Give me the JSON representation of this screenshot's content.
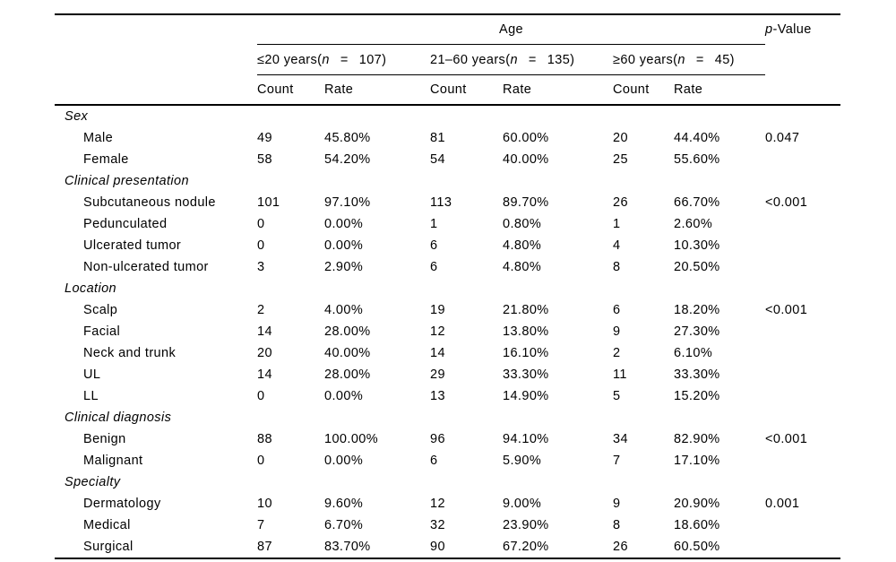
{
  "page": {
    "background": "#ffffff",
    "text_color": "#000000",
    "rule_color": "#000000"
  },
  "table": {
    "age_header": "Age",
    "p_value_header": {
      "italic": "p",
      "rest": "-Value"
    },
    "groups": [
      {
        "pre": "≤20 years(",
        "var": "n",
        "eq": "=",
        "count": "107)"
      },
      {
        "pre": "21–60 years(",
        "var": "n",
        "eq": "=",
        "count": "135)"
      },
      {
        "pre": "≥60 years(",
        "var": "n",
        "eq": "=",
        "count": "45)"
      }
    ],
    "subheaders": {
      "count": "Count",
      "rate": "Rate"
    },
    "rows": [
      {
        "type": "section",
        "label": "Sex",
        "values": [
          "",
          "",
          "",
          "",
          "",
          ""
        ],
        "p": ""
      },
      {
        "type": "item",
        "label": "Male",
        "values": [
          "49",
          "45.80%",
          "81",
          "60.00%",
          "20",
          "44.40%"
        ],
        "p": "0.047"
      },
      {
        "type": "item",
        "label": "Female",
        "values": [
          "58",
          "54.20%",
          "54",
          "40.00%",
          "25",
          "55.60%"
        ],
        "p": ""
      },
      {
        "type": "section",
        "label": "Clinical presentation",
        "values": [
          "",
          "",
          "",
          "",
          "",
          ""
        ],
        "p": ""
      },
      {
        "type": "item",
        "label": "Subcutaneous nodule",
        "values": [
          "101",
          "97.10%",
          "113",
          "89.70%",
          "26",
          "66.70%"
        ],
        "p": "<0.001"
      },
      {
        "type": "item",
        "label": "Pedunculated",
        "values": [
          "0",
          "0.00%",
          "1",
          "0.80%",
          "1",
          "2.60%"
        ],
        "p": ""
      },
      {
        "type": "item",
        "label": "Ulcerated tumor",
        "values": [
          "0",
          "0.00%",
          "6",
          "4.80%",
          "4",
          "10.30%"
        ],
        "p": ""
      },
      {
        "type": "item",
        "label": "Non-ulcerated tumor",
        "values": [
          "3",
          "2.90%",
          "6",
          "4.80%",
          "8",
          "20.50%"
        ],
        "p": ""
      },
      {
        "type": "section",
        "label": "Location",
        "values": [
          "",
          "",
          "",
          "",
          "",
          ""
        ],
        "p": ""
      },
      {
        "type": "item",
        "label": "Scalp",
        "values": [
          "2",
          "4.00%",
          "19",
          "21.80%",
          "6",
          "18.20%"
        ],
        "p": "<0.001"
      },
      {
        "type": "item",
        "label": "Facial",
        "values": [
          "14",
          "28.00%",
          "12",
          "13.80%",
          "9",
          "27.30%"
        ],
        "p": ""
      },
      {
        "type": "item",
        "label": "Neck and trunk",
        "values": [
          "20",
          "40.00%",
          "14",
          "16.10%",
          "2",
          "6.10%"
        ],
        "p": ""
      },
      {
        "type": "item",
        "label": "UL",
        "values": [
          "14",
          "28.00%",
          "29",
          "33.30%",
          "11",
          "33.30%"
        ],
        "p": ""
      },
      {
        "type": "item",
        "label": "LL",
        "values": [
          "0",
          "0.00%",
          "13",
          "14.90%",
          "5",
          "15.20%"
        ],
        "p": ""
      },
      {
        "type": "section",
        "label": "Clinical diagnosis",
        "values": [
          "",
          "",
          "",
          "",
          "",
          ""
        ],
        "p": ""
      },
      {
        "type": "item",
        "label": "Benign",
        "values": [
          "88",
          "100.00%",
          "96",
          "94.10%",
          "34",
          "82.90%"
        ],
        "p": "<0.001"
      },
      {
        "type": "item",
        "label": "Malignant",
        "values": [
          "0",
          "0.00%",
          "6",
          "5.90%",
          "7",
          "17.10%"
        ],
        "p": ""
      },
      {
        "type": "section",
        "label": "Specialty",
        "values": [
          "",
          "",
          "",
          "",
          "",
          ""
        ],
        "p": ""
      },
      {
        "type": "item",
        "label": "Dermatology",
        "values": [
          "10",
          "9.60%",
          "12",
          "9.00%",
          "9",
          "20.90%"
        ],
        "p": "0.001"
      },
      {
        "type": "item",
        "label": "Medical",
        "values": [
          "7",
          "6.70%",
          "32",
          "23.90%",
          "8",
          "18.60%"
        ],
        "p": ""
      },
      {
        "type": "item",
        "label": "Surgical",
        "values": [
          "87",
          "83.70%",
          "90",
          "67.20%",
          "26",
          "60.50%"
        ],
        "p": ""
      }
    ]
  }
}
